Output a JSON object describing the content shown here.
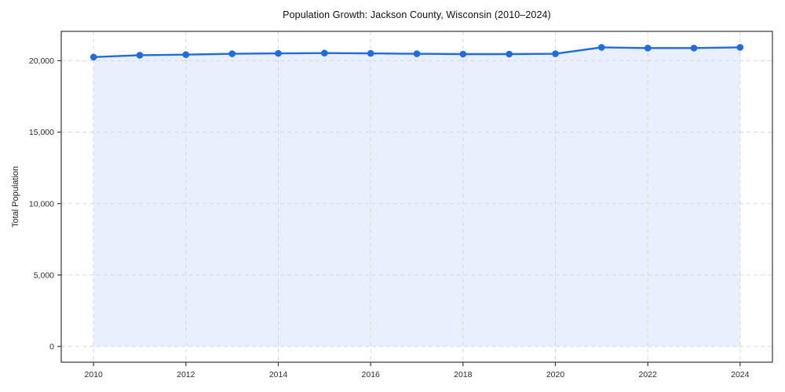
{
  "figure": {
    "title": "Population Growth: Jackson County, Wisconsin (2010–2024)",
    "y_axis_label": "Total Population"
  },
  "chart_data": {
    "type": "area",
    "title": "Population Growth: Jackson County, Wisconsin (2010–2024)",
    "xlabel": "",
    "ylabel": "Total Population",
    "x": [
      2010,
      2011,
      2012,
      2013,
      2014,
      2015,
      2016,
      2017,
      2018,
      2019,
      2020,
      2021,
      2022,
      2023,
      2024
    ],
    "series": [
      {
        "name": "Total Population",
        "values": [
          20250,
          20380,
          20420,
          20480,
          20510,
          20530,
          20510,
          20480,
          20460,
          20460,
          20480,
          20930,
          20880,
          20880,
          20930
        ]
      }
    ],
    "xticks": [
      2010,
      2012,
      2014,
      2016,
      2018,
      2020,
      2022,
      2024
    ],
    "xtick_labels": [
      "2010",
      "2012",
      "2014",
      "2016",
      "2018",
      "2020",
      "2022",
      "2024"
    ],
    "yticks": [
      0,
      5000,
      10000,
      15000,
      20000
    ],
    "ytick_labels": [
      "0",
      "5,000",
      "10,000",
      "15,000",
      "20,000"
    ],
    "xlim": [
      2009.3,
      2024.7
    ],
    "ylim": [
      -1100,
      22050
    ],
    "grid": true,
    "grid_style": "dashed",
    "grid_color": "#d8d8d8",
    "axis_color": "#373737",
    "line_color": "#1f6be0",
    "marker": "circle",
    "fill_color": "#e9effc",
    "legend_position": "none"
  }
}
